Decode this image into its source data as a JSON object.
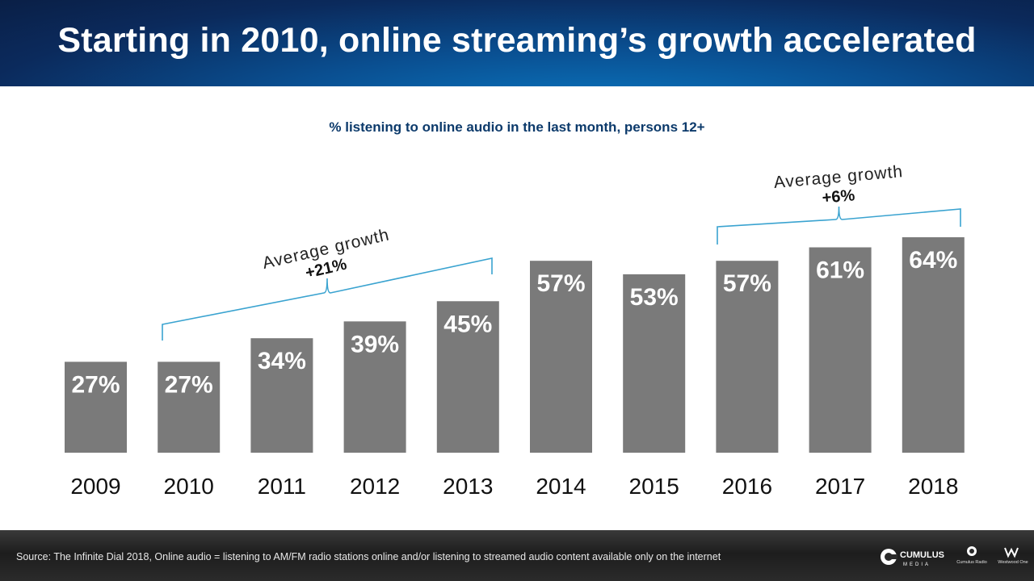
{
  "header": {
    "title": "Starting in 2010, online streaming’s growth accelerated"
  },
  "chart_data": {
    "type": "bar",
    "title": "% listening to online audio in the last month, persons 12+",
    "categories": [
      "2009",
      "2010",
      "2011",
      "2012",
      "2013",
      "2014",
      "2015",
      "2016",
      "2017",
      "2018"
    ],
    "values": [
      27,
      27,
      34,
      39,
      45,
      57,
      53,
      57,
      61,
      64
    ],
    "value_labels": [
      "27%",
      "27%",
      "34%",
      "39%",
      "45%",
      "57%",
      "53%",
      "57%",
      "61%",
      "64%"
    ],
    "bar_color": "#7a7a7a",
    "bracket_color": "#3aa3d0",
    "ylim": [
      0,
      70
    ],
    "grid": false,
    "annotations": [
      {
        "line1": "Average growth",
        "line2": "+21%",
        "from": "2010",
        "to": "2013"
      },
      {
        "line1": "Average growth",
        "line2": "+6%",
        "from": "2016",
        "to": "2018"
      }
    ]
  },
  "footer": {
    "source": "Source: The Infinite Dial 2018, Online audio = listening to AM/FM  radio stations online and/or listening to streamed audio content available only on the internet",
    "logo_main": "CUMULUS",
    "logo_main_sub": "MEDIA",
    "logo_second": "Cumulus Radio",
    "logo_third": "Westwood One"
  }
}
